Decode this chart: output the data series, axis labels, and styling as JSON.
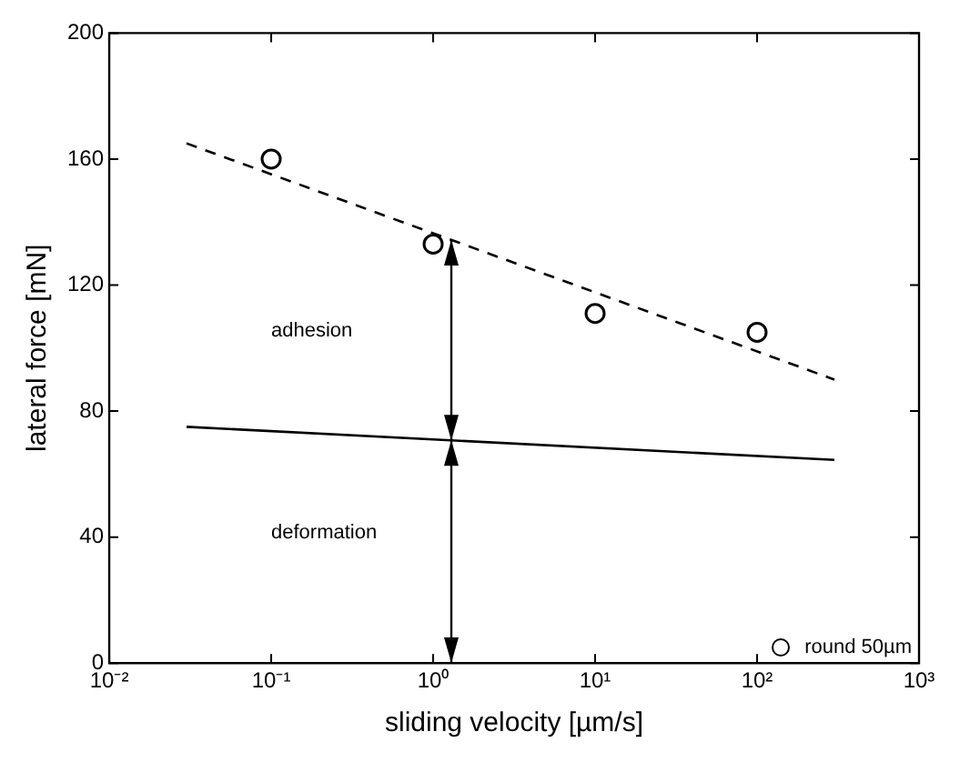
{
  "chart_data": {
    "type": "scatter",
    "xlabel": "sliding velocity [µm/s]",
    "ylabel": "lateral force [mN]",
    "series": [
      {
        "name": "round 50µm",
        "color": "#000000",
        "x": [
          0.1,
          1,
          10,
          100
        ],
        "values": [
          160,
          133,
          111,
          105
        ],
        "marker": "circle"
      },
      {
        "type": "line",
        "color": "#000000",
        "x": [
          0.03,
          300
        ],
        "values": [
          165,
          90
        ],
        "line_style": "dashed",
        "marker": "none"
      },
      {
        "type": "line",
        "color": "#000000",
        "x": [
          0.03,
          300
        ],
        "values": [
          75,
          64.5
        ],
        "line_style": "solid",
        "marker": "none"
      }
    ],
    "log": "x",
    "xlim": [
      0.01,
      1000
    ],
    "xticks": [
      {
        "value": 0.01,
        "label": "10⁻²"
      },
      {
        "value": 0.1,
        "label": "10⁻¹"
      },
      {
        "value": 1,
        "label": "10⁰"
      },
      {
        "value": 10,
        "label": "10¹"
      },
      {
        "value": 100,
        "label": "10²"
      },
      {
        "value": 1000,
        "label": "10³"
      }
    ],
    "ylim": [
      0,
      200
    ],
    "yticks": [
      0,
      40,
      80,
      120,
      160,
      200
    ],
    "grid": false,
    "legend": "bottom right",
    "annotations": [
      "adhesion",
      "deformation"
    ]
  }
}
